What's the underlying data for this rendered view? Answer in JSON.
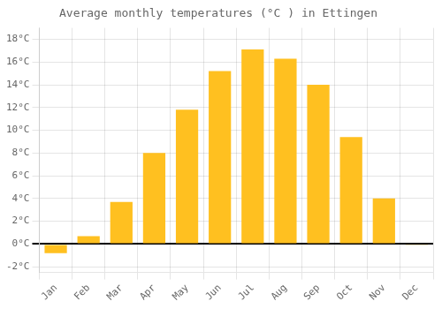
{
  "chart_data": {
    "type": "bar",
    "title": "Average monthly temperatures (°C ) in Ettingen",
    "categories": [
      "Jan",
      "Feb",
      "Mar",
      "Apr",
      "May",
      "Jun",
      "Jul",
      "Aug",
      "Sep",
      "Oct",
      "Nov",
      "Dec"
    ],
    "values": [
      -0.8,
      0.7,
      3.7,
      8.0,
      11.8,
      15.2,
      17.1,
      16.3,
      14.0,
      9.4,
      4.0,
      -0.1
    ],
    "color": "#FFC020",
    "ylim": [
      -2.5,
      19
    ],
    "yticks": [
      {
        "value": -2,
        "label": "-2°C"
      },
      {
        "value": 0,
        "label": "0°C"
      },
      {
        "value": 2,
        "label": "2°C"
      },
      {
        "value": 4,
        "label": "4°C"
      },
      {
        "value": 6,
        "label": "6°C"
      },
      {
        "value": 8,
        "label": "8°C"
      },
      {
        "value": 10,
        "label": "10°C"
      },
      {
        "value": 12,
        "label": "12°C"
      },
      {
        "value": 14,
        "label": "14°C"
      },
      {
        "value": 16,
        "label": "16°C"
      },
      {
        "value": 18,
        "label": "18°C"
      }
    ],
    "grid": true
  }
}
